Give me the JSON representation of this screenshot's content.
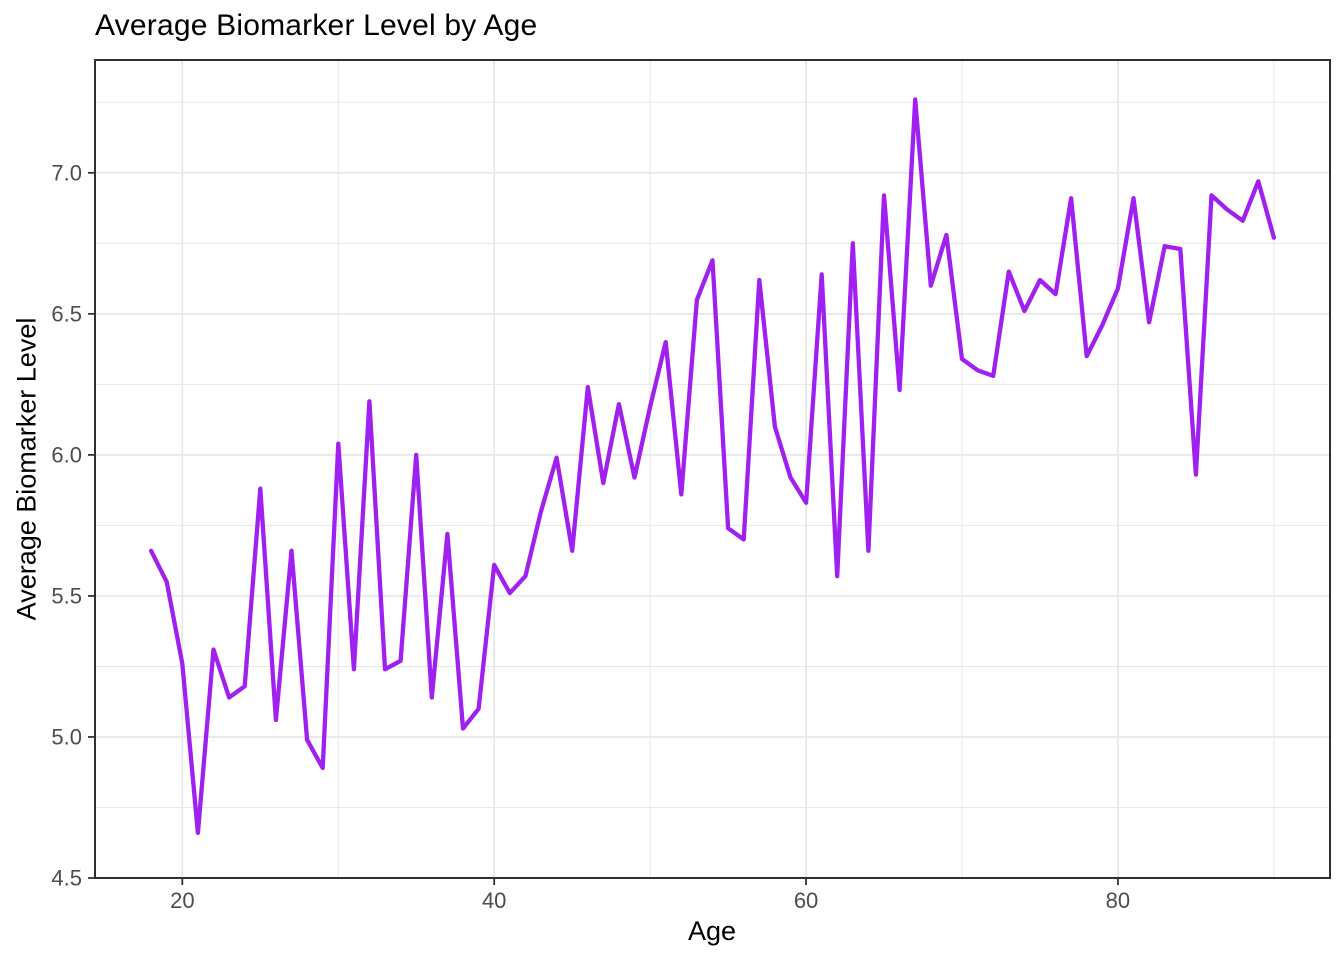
{
  "chart_data": {
    "type": "line",
    "title": "Average Biomarker Level by Age",
    "xlabel": "Age",
    "ylabel": "Average Biomarker Level",
    "legend": "none",
    "grid": true,
    "background": "#ffffff",
    "grid_color": "#e7e7e7",
    "border_color": "#2f2f2f",
    "tick_text_color": "#4d4d4d",
    "xlim": [
      14.4,
      93.6
    ],
    "ylim": [
      4.5,
      7.4
    ],
    "x_ticks": [
      20,
      40,
      60,
      80
    ],
    "y_ticks": [
      4.5,
      5.0,
      5.5,
      6.0,
      6.5,
      7.0
    ],
    "x_minor_ticks": [
      30,
      50,
      70,
      90
    ],
    "y_minor_ticks": [
      4.75,
      5.25,
      5.75,
      6.25,
      6.75,
      7.25
    ],
    "series": [
      {
        "name": "average-biomarker-level",
        "color": "#A020F0",
        "x": [
          18,
          19,
          20,
          21,
          22,
          23,
          24,
          25,
          26,
          27,
          28,
          29,
          30,
          31,
          32,
          33,
          34,
          35,
          36,
          37,
          38,
          39,
          40,
          41,
          42,
          43,
          44,
          45,
          46,
          47,
          48,
          49,
          50,
          51,
          52,
          53,
          54,
          55,
          56,
          57,
          58,
          59,
          60,
          61,
          62,
          63,
          64,
          65,
          66,
          67,
          68,
          69,
          70,
          71,
          72,
          73,
          74,
          75,
          76,
          77,
          78,
          79,
          80,
          81,
          82,
          83,
          84,
          85,
          86,
          87,
          88,
          89,
          90
        ],
        "values": [
          5.66,
          5.55,
          5.26,
          4.66,
          5.31,
          5.14,
          5.18,
          5.88,
          5.06,
          5.66,
          4.99,
          4.89,
          6.04,
          5.24,
          6.19,
          5.24,
          5.27,
          6.0,
          5.14,
          5.72,
          5.03,
          5.1,
          5.61,
          5.51,
          5.57,
          5.8,
          5.99,
          5.66,
          6.24,
          5.9,
          6.18,
          5.92,
          6.17,
          6.4,
          5.86,
          6.55,
          6.69,
          5.74,
          5.7,
          6.62,
          6.1,
          5.92,
          5.83,
          6.64,
          5.57,
          6.75,
          5.66,
          6.92,
          6.23,
          7.26,
          6.6,
          6.78,
          6.34,
          6.3,
          6.28,
          6.65,
          6.51,
          6.62,
          6.57,
          6.91,
          6.35,
          6.46,
          6.59,
          6.91,
          6.47,
          6.74,
          6.73,
          5.93,
          6.92,
          6.87,
          6.83,
          6.97,
          6.77
        ]
      }
    ]
  }
}
